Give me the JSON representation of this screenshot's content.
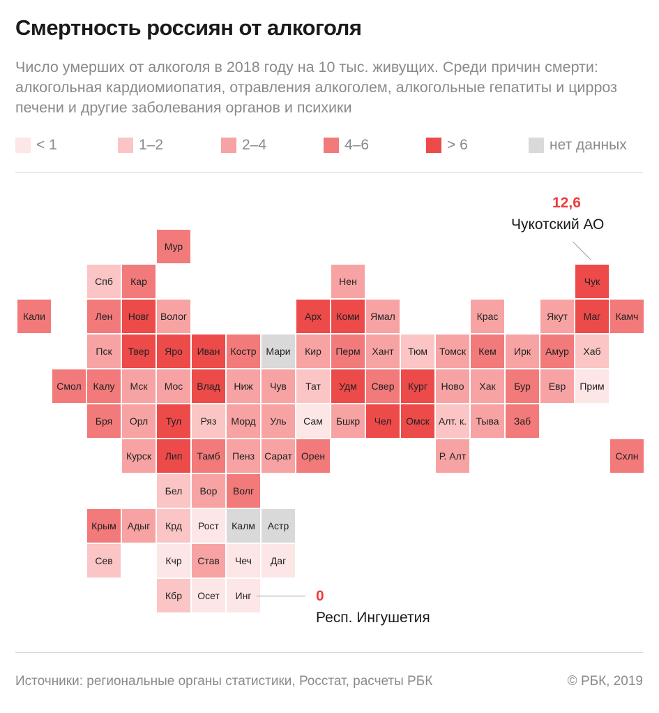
{
  "title": "Смертность россиян от алкоголя",
  "subtitle": "Число умерших от алкоголя в 2018 году на 10 тыс. живущих. Среди причин смерти: алкогольная кардиомиопатия, отравления алкоголем, алкогольные гепатиты и цирроз печени и другие заболевания органов и психики",
  "legend": [
    {
      "label": "< 1",
      "color": "#fde6e6"
    },
    {
      "label": "1–2",
      "color": "#fbc5c5"
    },
    {
      "label": "2–4",
      "color": "#f7a3a3"
    },
    {
      "label": "4–6",
      "color": "#f27a7a"
    },
    {
      "label": "> 6",
      "color": "#ed4a4a"
    },
    {
      "label": "нет данных",
      "color": "#d9d9d9"
    }
  ],
  "categories": [
    "<1",
    "1-2",
    "2-4",
    "4-6",
    ">6",
    "nodata"
  ],
  "map_data": {
    "type": "tile-grid-map",
    "regions": [
      {
        "label": "Мур",
        "col": 4,
        "row": 0,
        "category": "4-6"
      },
      {
        "label": "Спб",
        "col": 2,
        "row": 1,
        "category": "1-2"
      },
      {
        "label": "Кар",
        "col": 3,
        "row": 1,
        "category": "4-6"
      },
      {
        "label": "Нен",
        "col": 9,
        "row": 1,
        "category": "2-4"
      },
      {
        "label": "Чук",
        "col": 16,
        "row": 1,
        "category": ">6"
      },
      {
        "label": "Кали",
        "col": 0,
        "row": 2,
        "category": "4-6"
      },
      {
        "label": "Лен",
        "col": 2,
        "row": 2,
        "category": "4-6"
      },
      {
        "label": "Новг",
        "col": 3,
        "row": 2,
        "category": ">6"
      },
      {
        "label": "Волог",
        "col": 4,
        "row": 2,
        "category": "2-4"
      },
      {
        "label": "Арх",
        "col": 8,
        "row": 2,
        "category": ">6"
      },
      {
        "label": "Коми",
        "col": 9,
        "row": 2,
        "category": ">6"
      },
      {
        "label": "Ямал",
        "col": 10,
        "row": 2,
        "category": "2-4"
      },
      {
        "label": "Крас",
        "col": 13,
        "row": 2,
        "category": "2-4"
      },
      {
        "label": "Якут",
        "col": 15,
        "row": 2,
        "category": "2-4"
      },
      {
        "label": "Маг",
        "col": 16,
        "row": 2,
        "category": ">6"
      },
      {
        "label": "Камч",
        "col": 17,
        "row": 2,
        "category": "4-6"
      },
      {
        "label": "Пск",
        "col": 2,
        "row": 3,
        "category": "2-4"
      },
      {
        "label": "Твер",
        "col": 3,
        "row": 3,
        "category": ">6"
      },
      {
        "label": "Яро",
        "col": 4,
        "row": 3,
        "category": ">6"
      },
      {
        "label": "Иван",
        "col": 5,
        "row": 3,
        "category": ">6"
      },
      {
        "label": "Костр",
        "col": 6,
        "row": 3,
        "category": "4-6"
      },
      {
        "label": "Мари",
        "col": 7,
        "row": 3,
        "category": "nodata"
      },
      {
        "label": "Кир",
        "col": 8,
        "row": 3,
        "category": "2-4"
      },
      {
        "label": "Перм",
        "col": 9,
        "row": 3,
        "category": "4-6"
      },
      {
        "label": "Хант",
        "col": 10,
        "row": 3,
        "category": "2-4"
      },
      {
        "label": "Тюм",
        "col": 11,
        "row": 3,
        "category": "1-2"
      },
      {
        "label": "Томск",
        "col": 12,
        "row": 3,
        "category": "2-4"
      },
      {
        "label": "Кем",
        "col": 13,
        "row": 3,
        "category": "4-6"
      },
      {
        "label": "Ирк",
        "col": 14,
        "row": 3,
        "category": "2-4"
      },
      {
        "label": "Амур",
        "col": 15,
        "row": 3,
        "category": "4-6"
      },
      {
        "label": "Хаб",
        "col": 16,
        "row": 3,
        "category": "1-2"
      },
      {
        "label": "Смол",
        "col": 1,
        "row": 4,
        "category": "4-6"
      },
      {
        "label": "Калу",
        "col": 2,
        "row": 4,
        "category": "4-6"
      },
      {
        "label": "Мск",
        "col": 3,
        "row": 4,
        "category": "2-4"
      },
      {
        "label": "Мос",
        "col": 4,
        "row": 4,
        "category": "2-4"
      },
      {
        "label": "Влад",
        "col": 5,
        "row": 4,
        "category": ">6"
      },
      {
        "label": "Ниж",
        "col": 6,
        "row": 4,
        "category": "2-4"
      },
      {
        "label": "Чув",
        "col": 7,
        "row": 4,
        "category": "2-4"
      },
      {
        "label": "Тат",
        "col": 8,
        "row": 4,
        "category": "1-2"
      },
      {
        "label": "Удм",
        "col": 9,
        "row": 4,
        "category": ">6"
      },
      {
        "label": "Свер",
        "col": 10,
        "row": 4,
        "category": "4-6"
      },
      {
        "label": "Кург",
        "col": 11,
        "row": 4,
        "category": ">6"
      },
      {
        "label": "Ново",
        "col": 12,
        "row": 4,
        "category": "2-4"
      },
      {
        "label": "Хак",
        "col": 13,
        "row": 4,
        "category": "2-4"
      },
      {
        "label": "Бур",
        "col": 14,
        "row": 4,
        "category": "4-6"
      },
      {
        "label": "Евр",
        "col": 15,
        "row": 4,
        "category": "2-4"
      },
      {
        "label": "Прим",
        "col": 16,
        "row": 4,
        "category": "<1"
      },
      {
        "label": "Бря",
        "col": 2,
        "row": 5,
        "category": "4-6"
      },
      {
        "label": "Орл",
        "col": 3,
        "row": 5,
        "category": "2-4"
      },
      {
        "label": "Тул",
        "col": 4,
        "row": 5,
        "category": ">6"
      },
      {
        "label": "Ряз",
        "col": 5,
        "row": 5,
        "category": "1-2"
      },
      {
        "label": "Морд",
        "col": 6,
        "row": 5,
        "category": "2-4"
      },
      {
        "label": "Уль",
        "col": 7,
        "row": 5,
        "category": "2-4"
      },
      {
        "label": "Сам",
        "col": 8,
        "row": 5,
        "category": "<1"
      },
      {
        "label": "Бшкр",
        "col": 9,
        "row": 5,
        "category": "2-4"
      },
      {
        "label": "Чел",
        "col": 10,
        "row": 5,
        "category": ">6"
      },
      {
        "label": "Омск",
        "col": 11,
        "row": 5,
        "category": ">6"
      },
      {
        "label": "Алт. к.",
        "col": 12,
        "row": 5,
        "category": "1-2"
      },
      {
        "label": "Тыва",
        "col": 13,
        "row": 5,
        "category": "2-4"
      },
      {
        "label": "Заб",
        "col": 14,
        "row": 5,
        "category": "4-6"
      },
      {
        "label": "Курск",
        "col": 3,
        "row": 6,
        "category": "2-4"
      },
      {
        "label": "Лип",
        "col": 4,
        "row": 6,
        "category": ">6"
      },
      {
        "label": "Тамб",
        "col": 5,
        "row": 6,
        "category": "4-6"
      },
      {
        "label": "Пенз",
        "col": 6,
        "row": 6,
        "category": "2-4"
      },
      {
        "label": "Сарат",
        "col": 7,
        "row": 6,
        "category": "2-4"
      },
      {
        "label": "Орен",
        "col": 8,
        "row": 6,
        "category": "4-6"
      },
      {
        "label": "Р. Алт",
        "col": 12,
        "row": 6,
        "category": "2-4"
      },
      {
        "label": "Схлн",
        "col": 17,
        "row": 6,
        "category": "4-6"
      },
      {
        "label": "Бел",
        "col": 4,
        "row": 7,
        "category": "1-2"
      },
      {
        "label": "Вор",
        "col": 5,
        "row": 7,
        "category": "2-4"
      },
      {
        "label": "Волг",
        "col": 6,
        "row": 7,
        "category": "4-6"
      },
      {
        "label": "Крым",
        "col": 2,
        "row": 8,
        "category": "4-6"
      },
      {
        "label": "Адыг",
        "col": 3,
        "row": 8,
        "category": "2-4"
      },
      {
        "label": "Крд",
        "col": 4,
        "row": 8,
        "category": "1-2"
      },
      {
        "label": "Рост",
        "col": 5,
        "row": 8,
        "category": "<1"
      },
      {
        "label": "Калм",
        "col": 6,
        "row": 8,
        "category": "nodata"
      },
      {
        "label": "Астр",
        "col": 7,
        "row": 8,
        "category": "nodata"
      },
      {
        "label": "Сев",
        "col": 2,
        "row": 9,
        "category": "1-2"
      },
      {
        "label": "Кчр",
        "col": 4,
        "row": 9,
        "category": "<1"
      },
      {
        "label": "Став",
        "col": 5,
        "row": 9,
        "category": "2-4"
      },
      {
        "label": "Чеч",
        "col": 6,
        "row": 9,
        "category": "<1"
      },
      {
        "label": "Даг",
        "col": 7,
        "row": 9,
        "category": "<1"
      },
      {
        "label": "Кбр",
        "col": 4,
        "row": 10,
        "category": "1-2"
      },
      {
        "label": "Осет",
        "col": 5,
        "row": 10,
        "category": "<1"
      },
      {
        "label": "Инг",
        "col": 6,
        "row": 10,
        "category": "<1"
      }
    ]
  },
  "callouts": [
    {
      "value": "12,6",
      "name": "Чукотский АО"
    },
    {
      "value": "0",
      "name": "Респ. Ингушетия"
    }
  ],
  "footer": {
    "source": "Источники: региональные органы статистики, Росстат, расчеты РБК",
    "copyright": "© РБК, 2019"
  }
}
